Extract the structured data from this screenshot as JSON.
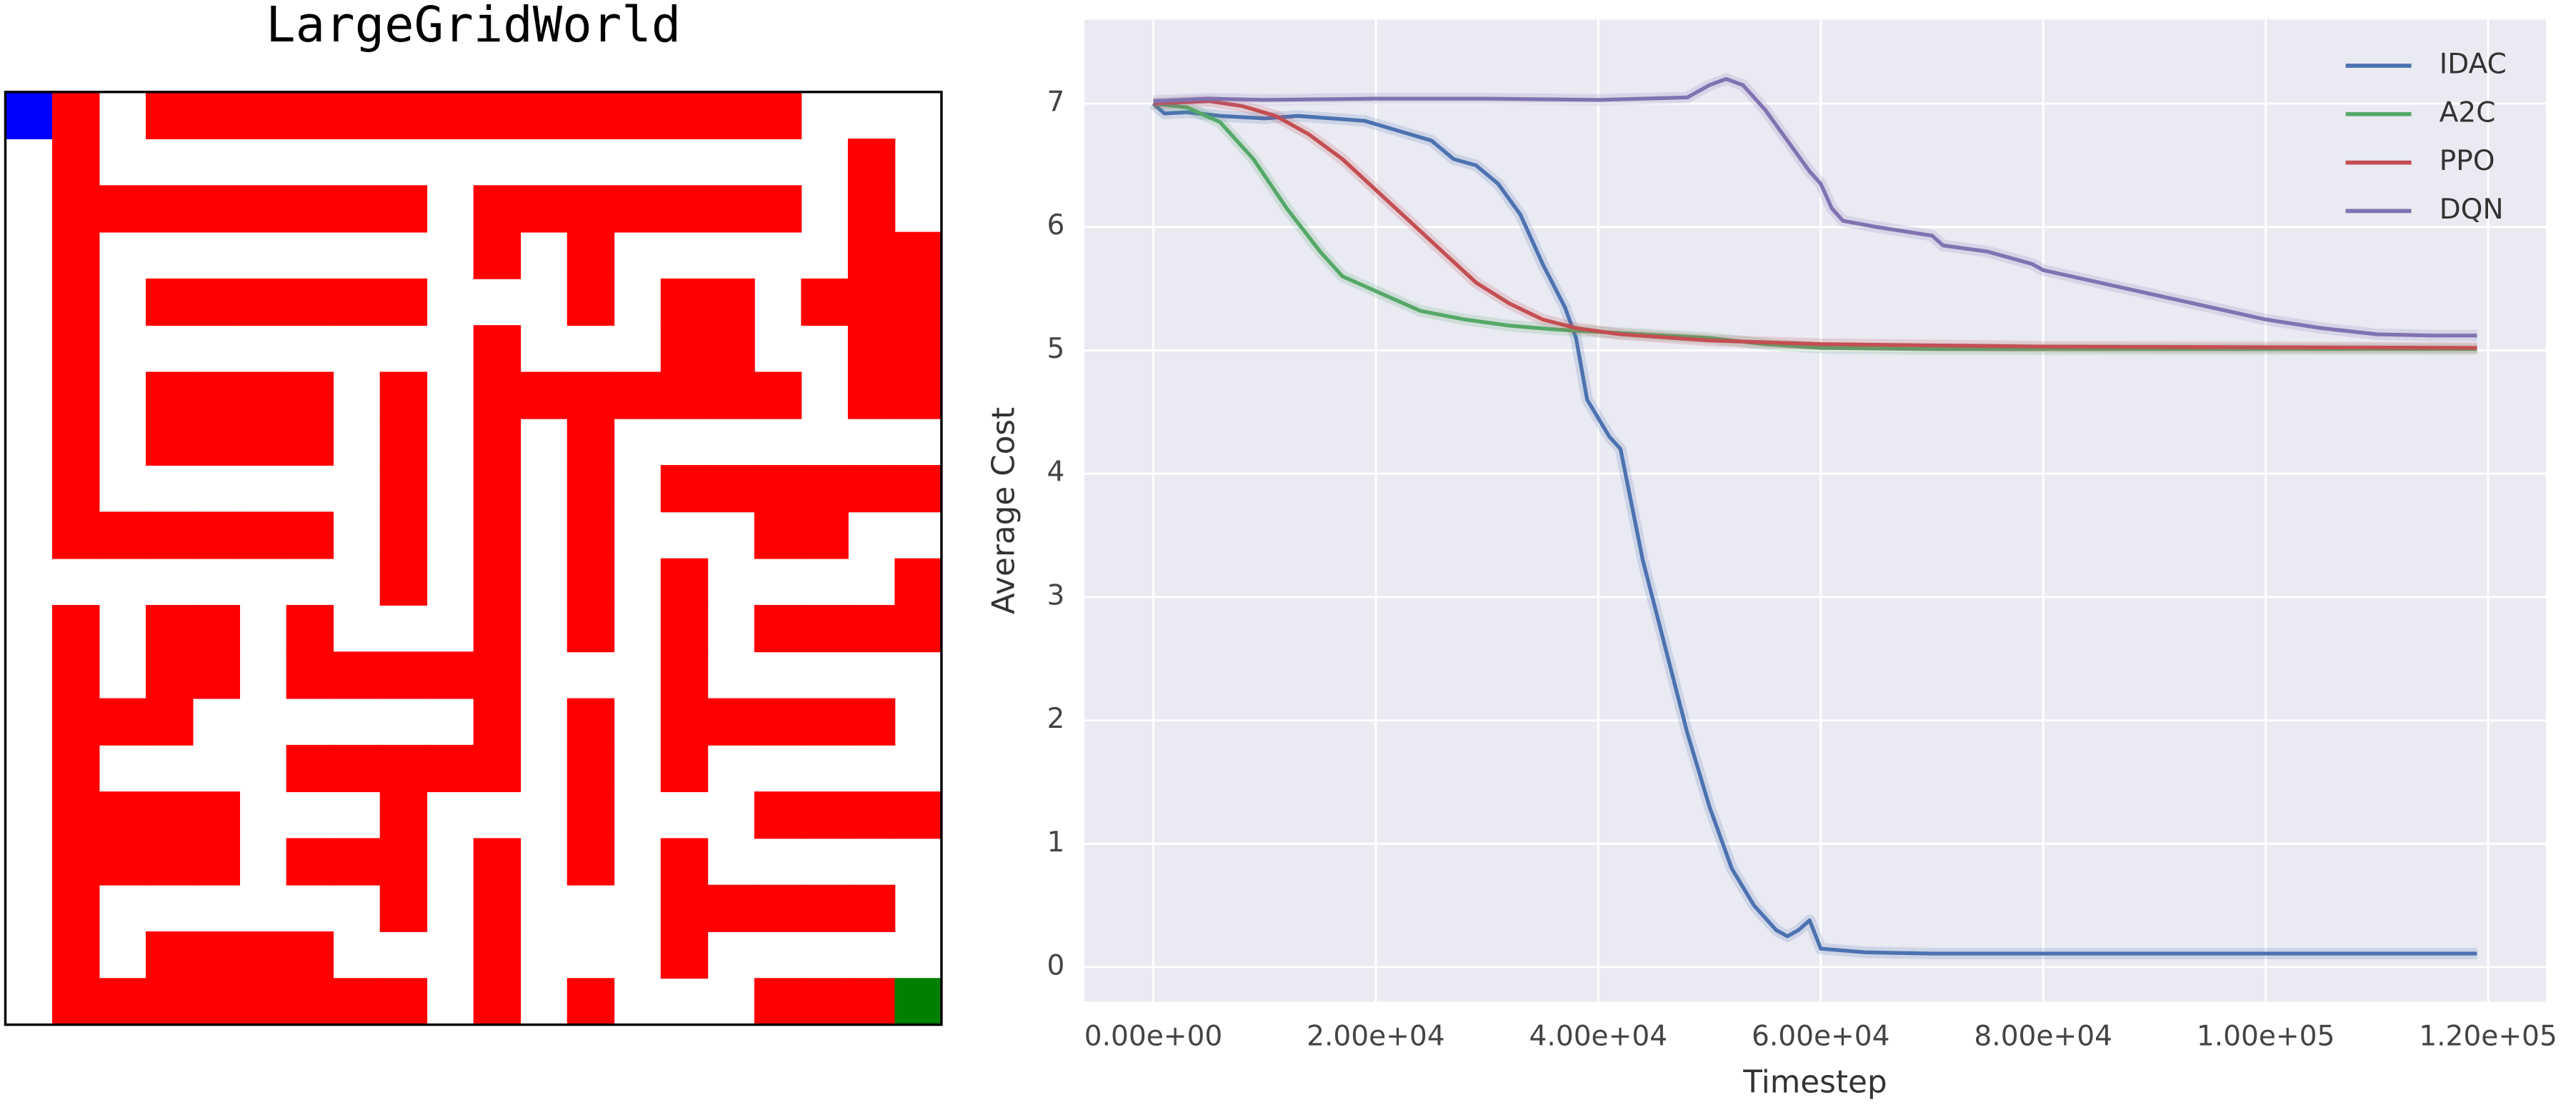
{
  "grid_world": {
    "title": "LargeGridWorld"
  },
  "chart_data": {
    "type": "line",
    "xlabel": "Timestep",
    "ylabel": "Average Cost",
    "xlim": [
      -6200,
      125200
    ],
    "ylim": [
      -0.28,
      7.68
    ],
    "xticks": [
      {
        "value": 0,
        "label": "0.00e+00"
      },
      {
        "value": 20000,
        "label": "2.00e+04"
      },
      {
        "value": 40000,
        "label": "4.00e+04"
      },
      {
        "value": 60000,
        "label": "6.00e+04"
      },
      {
        "value": 80000,
        "label": "8.00e+04"
      },
      {
        "value": 100000,
        "label": "1.00e+05"
      },
      {
        "value": 120000,
        "label": "1.20e+05"
      }
    ],
    "yticks": [
      0,
      1,
      2,
      3,
      4,
      5,
      6,
      7
    ],
    "grid": true,
    "legend": "upper right",
    "series": [
      {
        "name": "IDAC",
        "color": "#4c72b0",
        "x": [
          0,
          1000,
          3000,
          6000,
          10000,
          13000,
          16000,
          19000,
          22000,
          25000,
          27000,
          29000,
          31000,
          33000,
          35000,
          37000,
          38000,
          39000,
          41000,
          42000,
          44000,
          46000,
          48000,
          50000,
          52000,
          54000,
          56000,
          57000,
          58000,
          59000,
          60000,
          64000,
          70000,
          80000,
          100000,
          119000
        ],
        "values": [
          7.0,
          6.92,
          6.93,
          6.9,
          6.88,
          6.9,
          6.88,
          6.86,
          6.78,
          6.7,
          6.55,
          6.5,
          6.35,
          6.1,
          5.7,
          5.35,
          5.1,
          4.6,
          4.3,
          4.2,
          3.3,
          2.6,
          1.9,
          1.3,
          0.8,
          0.5,
          0.3,
          0.25,
          0.3,
          0.38,
          0.15,
          0.12,
          0.11,
          0.11,
          0.11,
          0.11
        ]
      },
      {
        "name": "A2C",
        "color": "#55a868",
        "x": [
          0,
          3000,
          6000,
          9000,
          12000,
          15000,
          17000,
          20000,
          24000,
          28000,
          32000,
          36000,
          40000,
          50000,
          55000,
          60000,
          70000,
          119000
        ],
        "values": [
          7.0,
          6.97,
          6.85,
          6.55,
          6.15,
          5.8,
          5.6,
          5.48,
          5.32,
          5.25,
          5.2,
          5.17,
          5.15,
          5.1,
          5.05,
          5.02,
          5.01,
          5.01
        ]
      },
      {
        "name": "PPO",
        "color": "#c44e52",
        "x": [
          0,
          5000,
          8000,
          11000,
          14000,
          17000,
          20000,
          23000,
          26000,
          29000,
          32000,
          35000,
          38000,
          42000,
          50000,
          60000,
          80000,
          119000
        ],
        "values": [
          7.0,
          7.02,
          6.98,
          6.9,
          6.75,
          6.55,
          6.3,
          6.05,
          5.8,
          5.55,
          5.38,
          5.25,
          5.18,
          5.13,
          5.08,
          5.05,
          5.03,
          5.02
        ]
      },
      {
        "name": "DQN",
        "color": "#8172b2",
        "x": [
          0,
          5000,
          10000,
          20000,
          30000,
          40000,
          48000,
          50000,
          51500,
          53000,
          55000,
          57000,
          59000,
          60000,
          61000,
          62000,
          65000,
          70000,
          71000,
          75000,
          79000,
          80000,
          85000,
          90000,
          95000,
          100000,
          105000,
          110000,
          115000,
          119000
        ],
        "values": [
          7.02,
          7.04,
          7.03,
          7.04,
          7.04,
          7.03,
          7.05,
          7.15,
          7.2,
          7.15,
          6.95,
          6.7,
          6.45,
          6.35,
          6.15,
          6.05,
          6.0,
          5.93,
          5.85,
          5.8,
          5.7,
          5.65,
          5.55,
          5.45,
          5.35,
          5.25,
          5.18,
          5.13,
          5.12,
          5.12
        ]
      }
    ]
  }
}
